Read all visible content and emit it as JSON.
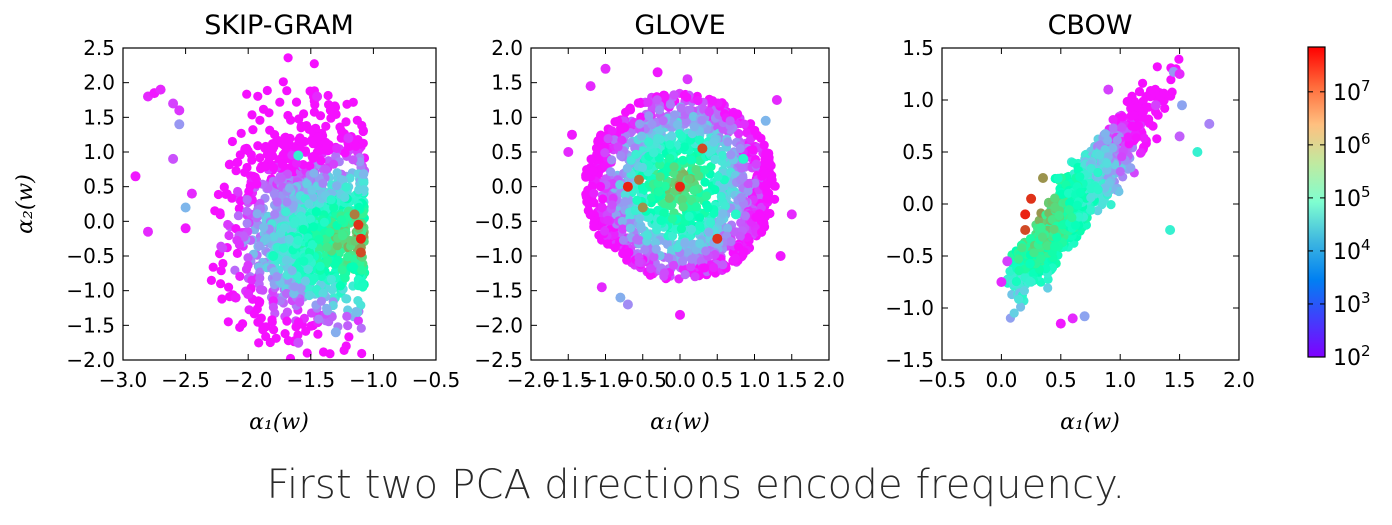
{
  "caption": "First two PCA directions encode frequency.",
  "colorbar": {
    "scale": "log",
    "range": [
      100,
      70000000
    ],
    "ticks": [
      {
        "label": "10",
        "exp": "2",
        "value": 100
      },
      {
        "label": "10",
        "exp": "3",
        "value": 1000
      },
      {
        "label": "10",
        "exp": "4",
        "value": 10000
      },
      {
        "label": "10",
        "exp": "5",
        "value": 100000
      },
      {
        "label": "10",
        "exp": "6",
        "value": 1000000
      },
      {
        "label": "10",
        "exp": "7",
        "value": 10000000
      }
    ],
    "colormap": "rainbow"
  },
  "chart_data": [
    {
      "type": "scatter",
      "title": "SKIP-GRAM",
      "xlabel": "α₁(w)",
      "ylabel": "α₂(w)",
      "xlim": [
        -3.0,
        -0.5
      ],
      "ylim": [
        -2.0,
        2.5
      ],
      "xticks": [
        "−3.0",
        "−2.5",
        "−2.0",
        "−1.5",
        "−1.0",
        "−0.5"
      ],
      "xtick_values": [
        -3.0,
        -2.5,
        -2.0,
        -1.5,
        -1.0,
        -0.5
      ],
      "yticks": [
        "−2.0",
        "−1.5",
        "−1.0",
        "−0.5",
        "0.0",
        "0.5",
        "1.0",
        "1.5",
        "2.0",
        "2.5"
      ],
      "ytick_values": [
        -2.0,
        -1.5,
        -1.0,
        -0.5,
        0.0,
        0.5,
        1.0,
        1.5,
        2.0,
        2.5
      ],
      "color_by": "word frequency (log scale)",
      "cloud_center": [
        -1.55,
        0.0
      ],
      "high_frequency_cluster": [
        -1.1,
        -0.3
      ],
      "points": [
        {
          "x": -2.8,
          "y": 1.8,
          "freq": 200
        },
        {
          "x": -2.75,
          "y": 1.85,
          "freq": 150
        },
        {
          "x": -2.6,
          "y": 1.7,
          "freq": 300
        },
        {
          "x": -2.7,
          "y": 1.9,
          "freq": 200
        },
        {
          "x": -2.55,
          "y": 1.6,
          "freq": 250
        },
        {
          "x": -2.9,
          "y": 0.65,
          "freq": 150
        },
        {
          "x": -2.8,
          "y": -0.15,
          "freq": 200
        },
        {
          "x": -2.6,
          "y": 0.9,
          "freq": 400
        },
        {
          "x": -2.5,
          "y": 0.2,
          "freq": 3000
        },
        {
          "x": -2.5,
          "y": -0.1,
          "freq": 150
        },
        {
          "x": -2.55,
          "y": 1.4,
          "freq": 1500
        },
        {
          "x": -2.45,
          "y": 0.4,
          "freq": 200
        },
        {
          "x": -2.0,
          "y": -1.05,
          "freq": 200
        },
        {
          "x": -2.1,
          "y": -1.1,
          "freq": 150
        },
        {
          "x": -1.6,
          "y": -1.75,
          "freq": 400
        },
        {
          "x": -1.45,
          "y": 1.8,
          "freq": 200
        },
        {
          "x": -1.2,
          "y": 1.2,
          "freq": 250
        },
        {
          "x": -1.3,
          "y": -1.6,
          "freq": 2500
        },
        {
          "x": -1.1,
          "y": -0.25,
          "freq": 40000000
        },
        {
          "x": -1.12,
          "y": -0.05,
          "freq": 30000000
        },
        {
          "x": -1.1,
          "y": -0.45,
          "freq": 20000000
        },
        {
          "x": -1.15,
          "y": 0.1,
          "freq": 8000000
        },
        {
          "x": -1.6,
          "y": 0.95,
          "freq": 20000
        },
        {
          "x": -1.8,
          "y": -0.5,
          "freq": 50000
        }
      ]
    },
    {
      "type": "scatter",
      "title": "GLOVE",
      "xlabel": "α₁(w)",
      "ylabel": "",
      "xlim": [
        -2.0,
        2.0
      ],
      "ylim": [
        -2.5,
        2.0
      ],
      "xticks": [
        "−2.0",
        "−1.5",
        "−1.0",
        "−0.5",
        "0.0",
        "0.5",
        "1.0",
        "1.5",
        "2.0"
      ],
      "xtick_values": [
        -2.0,
        -1.5,
        -1.0,
        -0.5,
        0.0,
        0.5,
        1.0,
        1.5,
        2.0
      ],
      "yticks": [
        "−2.5",
        "−2.0",
        "−1.5",
        "−1.0",
        "−0.5",
        "0.0",
        "0.5",
        "1.0",
        "1.5",
        "2.0"
      ],
      "ytick_values": [
        -2.5,
        -2.0,
        -1.5,
        -1.0,
        -0.5,
        0.0,
        0.5,
        1.0,
        1.5,
        2.0
      ],
      "color_by": "word frequency (log scale)",
      "cloud_center": [
        0.0,
        0.0
      ],
      "high_frequency_cluster": [
        0.0,
        0.0
      ],
      "points": [
        {
          "x": -1.45,
          "y": 0.75,
          "freq": 150
        },
        {
          "x": -1.5,
          "y": 0.5,
          "freq": 200
        },
        {
          "x": -1.2,
          "y": 1.45,
          "freq": 200
        },
        {
          "x": -0.3,
          "y": 1.65,
          "freq": 150
        },
        {
          "x": 0.1,
          "y": 1.55,
          "freq": 250
        },
        {
          "x": -1.0,
          "y": 1.7,
          "freq": 200
        },
        {
          "x": 1.3,
          "y": 1.25,
          "freq": 200
        },
        {
          "x": 1.15,
          "y": 0.95,
          "freq": 3000
        },
        {
          "x": 1.5,
          "y": -0.4,
          "freq": 200
        },
        {
          "x": 1.35,
          "y": -1.0,
          "freq": 150
        },
        {
          "x": -1.05,
          "y": -1.45,
          "freq": 200
        },
        {
          "x": 0.0,
          "y": -1.85,
          "freq": 150
        },
        {
          "x": -0.7,
          "y": -1.7,
          "freq": 1200
        },
        {
          "x": -0.8,
          "y": -1.6,
          "freq": 2500
        },
        {
          "x": -0.7,
          "y": 0.0,
          "freq": 40000000
        },
        {
          "x": 0.0,
          "y": 0.0,
          "freq": 40000000
        },
        {
          "x": -0.55,
          "y": 0.1,
          "freq": 10000000
        },
        {
          "x": 0.5,
          "y": -0.75,
          "freq": 30000000
        },
        {
          "x": 0.3,
          "y": 0.55,
          "freq": 20000000
        },
        {
          "x": -0.5,
          "y": -0.3,
          "freq": 5000000
        },
        {
          "x": 0.75,
          "y": -0.4,
          "freq": 30000
        },
        {
          "x": 0.85,
          "y": 0.4,
          "freq": 30000
        }
      ]
    },
    {
      "type": "scatter",
      "title": "CBOW",
      "xlabel": "α₁(w)",
      "ylabel": "",
      "xlim": [
        -0.5,
        2.0
      ],
      "ylim": [
        -1.5,
        1.5
      ],
      "xticks": [
        "−0.5",
        "0.0",
        "0.5",
        "1.0",
        "1.5",
        "2.0"
      ],
      "xtick_values": [
        -0.5,
        0.0,
        0.5,
        1.0,
        1.5,
        2.0
      ],
      "yticks": [
        "−1.5",
        "−1.0",
        "−0.5",
        "0.0",
        "0.5",
        "1.0",
        "1.5"
      ],
      "ytick_values": [
        -1.5,
        -1.0,
        -0.5,
        0.0,
        0.5,
        1.0,
        1.5
      ],
      "color_by": "word frequency (log scale)",
      "cloud_center": [
        0.65,
        0.05
      ],
      "high_frequency_cluster": [
        0.25,
        -0.1
      ],
      "points": [
        {
          "x": 1.45,
          "y": 1.27,
          "freq": 1500
        },
        {
          "x": 1.5,
          "y": 1.25,
          "freq": 200
        },
        {
          "x": 1.75,
          "y": 0.77,
          "freq": 1000
        },
        {
          "x": 1.65,
          "y": 0.5,
          "freq": 20000
        },
        {
          "x": 1.5,
          "y": 0.65,
          "freq": 500
        },
        {
          "x": 1.52,
          "y": 0.95,
          "freq": 2000
        },
        {
          "x": 1.42,
          "y": -0.25,
          "freq": 20000
        },
        {
          "x": 0.0,
          "y": -0.75,
          "freq": 200
        },
        {
          "x": 0.05,
          "y": -0.55,
          "freq": 300
        },
        {
          "x": 0.5,
          "y": -1.15,
          "freq": 150
        },
        {
          "x": 0.6,
          "y": -1.1,
          "freq": 200
        },
        {
          "x": 0.7,
          "y": -1.08,
          "freq": 2000
        },
        {
          "x": 0.2,
          "y": -0.1,
          "freq": 40000000
        },
        {
          "x": 0.25,
          "y": 0.05,
          "freq": 30000000
        },
        {
          "x": 0.2,
          "y": -0.25,
          "freq": 20000000
        },
        {
          "x": 0.35,
          "y": 0.25,
          "freq": 5000000
        },
        {
          "x": 1.3,
          "y": 0.95,
          "freq": 300
        },
        {
          "x": 0.9,
          "y": 1.1,
          "freq": 300
        }
      ]
    }
  ]
}
